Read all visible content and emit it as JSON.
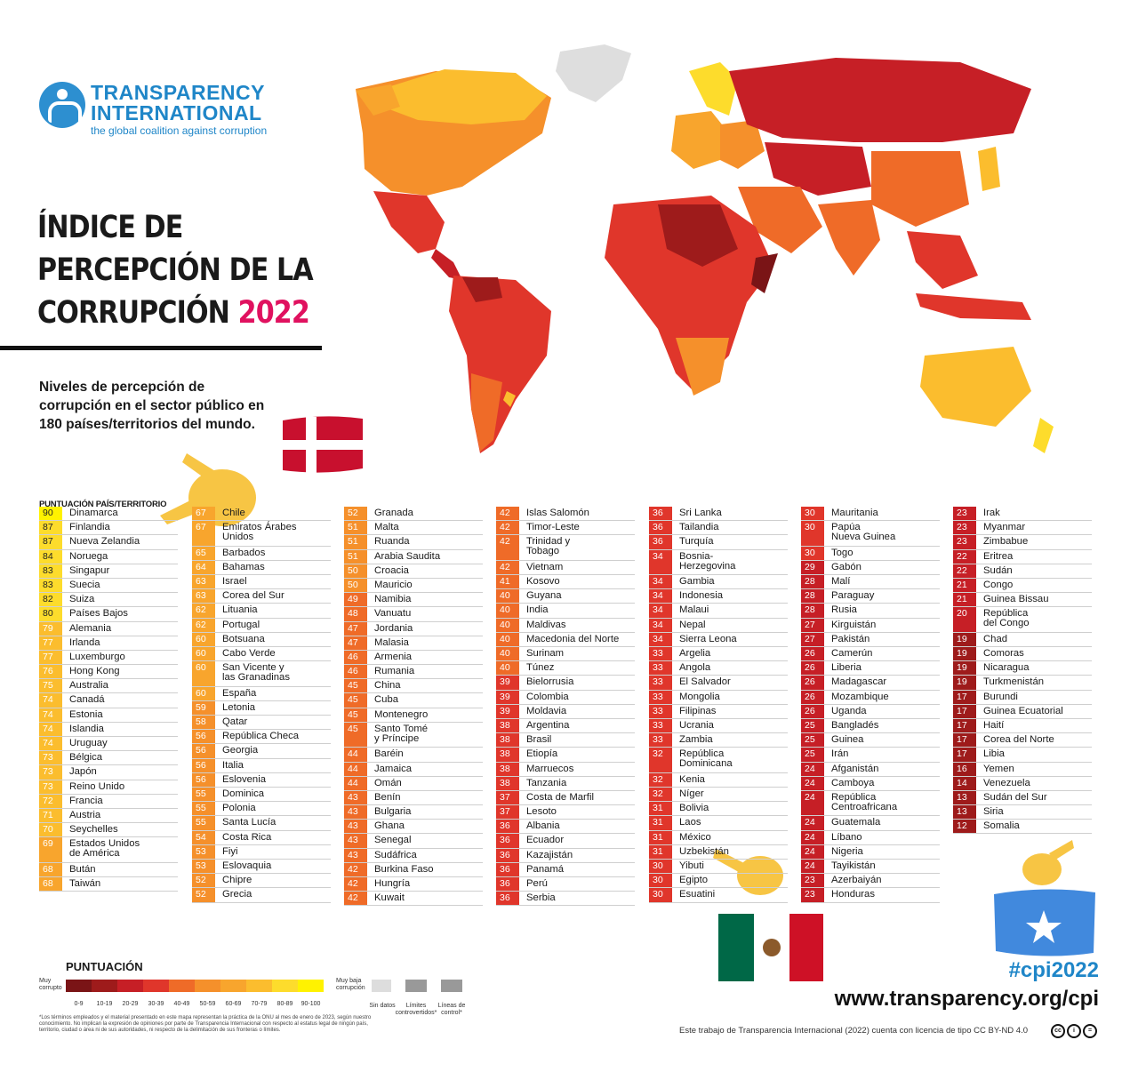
{
  "brand": {
    "line1": "TRANSPARENCY",
    "line2": "INTERNATIONAL",
    "tagline": "the global coalition against corruption"
  },
  "title": {
    "line1": "ÍNDICE DE",
    "line2": "PERCEPCIÓN DE LA",
    "line3": "CORRUPCIÓN",
    "year": "2022"
  },
  "subtitle": "Niveles de percepción de corrupción en el sector público en 180 países/territorios del mundo.",
  "table_header": "PUNTUACIÓN  PAÍS/TERRITORIO",
  "colors": {
    "s0": "#7a1416",
    "s10": "#9e1b1b",
    "s20": "#c61f26",
    "s30": "#e0362b",
    "s40": "#ef6b28",
    "s50": "#f5902b",
    "s60": "#f8a52d",
    "s70": "#fbbd2e",
    "s80": "#fddc2c",
    "s90": "#fff200",
    "accent": "#e0115f",
    "blue": "#1f86c8"
  },
  "columns": [
    [
      {
        "s": 90,
        "n": "Dinamarca"
      },
      {
        "s": 87,
        "n": "Finlandia"
      },
      {
        "s": 87,
        "n": "Nueva Zelandia"
      },
      {
        "s": 84,
        "n": "Noruega"
      },
      {
        "s": 83,
        "n": "Singapur"
      },
      {
        "s": 83,
        "n": "Suecia"
      },
      {
        "s": 82,
        "n": "Suiza"
      },
      {
        "s": 80,
        "n": "Países Bajos"
      },
      {
        "s": 79,
        "n": "Alemania"
      },
      {
        "s": 77,
        "n": "Irlanda"
      },
      {
        "s": 77,
        "n": "Luxemburgo"
      },
      {
        "s": 76,
        "n": "Hong Kong"
      },
      {
        "s": 75,
        "n": "Australia"
      },
      {
        "s": 74,
        "n": "Canadá"
      },
      {
        "s": 74,
        "n": "Estonia"
      },
      {
        "s": 74,
        "n": "Islandia"
      },
      {
        "s": 74,
        "n": "Uruguay"
      },
      {
        "s": 73,
        "n": "Bélgica"
      },
      {
        "s": 73,
        "n": "Japón"
      },
      {
        "s": 73,
        "n": "Reino Unido"
      },
      {
        "s": 72,
        "n": "Francia"
      },
      {
        "s": 71,
        "n": "Austria"
      },
      {
        "s": 70,
        "n": "Seychelles"
      },
      {
        "s": 69,
        "n": "Estados Unidos\nde América"
      },
      {
        "s": 68,
        "n": "Bután"
      },
      {
        "s": 68,
        "n": "Taiwán"
      }
    ],
    [
      {
        "s": 67,
        "n": "Chile"
      },
      {
        "s": 67,
        "n": "Emiratos Árabes\nUnidos"
      },
      {
        "s": 65,
        "n": "Barbados"
      },
      {
        "s": 64,
        "n": "Bahamas"
      },
      {
        "s": 63,
        "n": "Israel"
      },
      {
        "s": 63,
        "n": "Corea del Sur"
      },
      {
        "s": 62,
        "n": "Lituania"
      },
      {
        "s": 62,
        "n": "Portugal"
      },
      {
        "s": 60,
        "n": "Botsuana"
      },
      {
        "s": 60,
        "n": "Cabo Verde"
      },
      {
        "s": 60,
        "n": "San Vicente y\nlas Granadinas"
      },
      {
        "s": 60,
        "n": "España"
      },
      {
        "s": 59,
        "n": "Letonia"
      },
      {
        "s": 58,
        "n": "Qatar"
      },
      {
        "s": 56,
        "n": "República Checa"
      },
      {
        "s": 56,
        "n": "Georgia"
      },
      {
        "s": 56,
        "n": "Italia"
      },
      {
        "s": 56,
        "n": "Eslovenia"
      },
      {
        "s": 55,
        "n": "Dominica"
      },
      {
        "s": 55,
        "n": "Polonia"
      },
      {
        "s": 55,
        "n": "Santa Lucía"
      },
      {
        "s": 54,
        "n": "Costa Rica"
      },
      {
        "s": 53,
        "n": "Fiyi"
      },
      {
        "s": 53,
        "n": "Eslovaquia"
      },
      {
        "s": 52,
        "n": "Chipre"
      },
      {
        "s": 52,
        "n": "Grecia"
      }
    ],
    [
      {
        "s": 52,
        "n": "Granada"
      },
      {
        "s": 51,
        "n": "Malta"
      },
      {
        "s": 51,
        "n": "Ruanda"
      },
      {
        "s": 51,
        "n": "Arabia Saudita"
      },
      {
        "s": 50,
        "n": "Croacia"
      },
      {
        "s": 50,
        "n": "Mauricio"
      },
      {
        "s": 49,
        "n": "Namibia"
      },
      {
        "s": 48,
        "n": "Vanuatu"
      },
      {
        "s": 47,
        "n": "Jordania"
      },
      {
        "s": 47,
        "n": "Malasia"
      },
      {
        "s": 46,
        "n": "Armenia"
      },
      {
        "s": 46,
        "n": "Rumania"
      },
      {
        "s": 45,
        "n": "China"
      },
      {
        "s": 45,
        "n": "Cuba"
      },
      {
        "s": 45,
        "n": "Montenegro"
      },
      {
        "s": 45,
        "n": "Santo Tomé\ny Príncipe"
      },
      {
        "s": 44,
        "n": "Baréin"
      },
      {
        "s": 44,
        "n": "Jamaica"
      },
      {
        "s": 44,
        "n": "Omán"
      },
      {
        "s": 43,
        "n": "Benín"
      },
      {
        "s": 43,
        "n": "Bulgaria"
      },
      {
        "s": 43,
        "n": "Ghana"
      },
      {
        "s": 43,
        "n": "Senegal"
      },
      {
        "s": 43,
        "n": "Sudáfrica"
      },
      {
        "s": 42,
        "n": "Burkina Faso"
      },
      {
        "s": 42,
        "n": "Hungría"
      },
      {
        "s": 42,
        "n": "Kuwait"
      }
    ],
    [
      {
        "s": 42,
        "n": "Islas Salomón"
      },
      {
        "s": 42,
        "n": "Timor-Leste"
      },
      {
        "s": 42,
        "n": "Trinidad y\nTobago"
      },
      {
        "s": 42,
        "n": "Vietnam"
      },
      {
        "s": 41,
        "n": "Kosovo"
      },
      {
        "s": 40,
        "n": "Guyana"
      },
      {
        "s": 40,
        "n": "India"
      },
      {
        "s": 40,
        "n": "Maldivas"
      },
      {
        "s": 40,
        "n": "Macedonia del Norte"
      },
      {
        "s": 40,
        "n": "Surinam"
      },
      {
        "s": 40,
        "n": "Túnez"
      },
      {
        "s": 39,
        "n": "Bielorrusia"
      },
      {
        "s": 39,
        "n": "Colombia"
      },
      {
        "s": 39,
        "n": "Moldavia"
      },
      {
        "s": 38,
        "n": "Argentina"
      },
      {
        "s": 38,
        "n": "Brasil"
      },
      {
        "s": 38,
        "n": "Etiopía"
      },
      {
        "s": 38,
        "n": "Marruecos"
      },
      {
        "s": 38,
        "n": "Tanzania"
      },
      {
        "s": 37,
        "n": "Costa de Marfil"
      },
      {
        "s": 37,
        "n": "Lesoto"
      },
      {
        "s": 36,
        "n": "Albania"
      },
      {
        "s": 36,
        "n": "Ecuador"
      },
      {
        "s": 36,
        "n": "Kazajistán"
      },
      {
        "s": 36,
        "n": "Panamá"
      },
      {
        "s": 36,
        "n": "Perú"
      },
      {
        "s": 36,
        "n": "Serbia"
      }
    ],
    [
      {
        "s": 36,
        "n": "Sri Lanka"
      },
      {
        "s": 36,
        "n": "Tailandia"
      },
      {
        "s": 36,
        "n": "Turquía"
      },
      {
        "s": 34,
        "n": "Bosnia-\nHerzegovina"
      },
      {
        "s": 34,
        "n": "Gambia"
      },
      {
        "s": 34,
        "n": "Indonesia"
      },
      {
        "s": 34,
        "n": "Malaui"
      },
      {
        "s": 34,
        "n": "Nepal"
      },
      {
        "s": 34,
        "n": "Sierra Leona"
      },
      {
        "s": 33,
        "n": "Argelia"
      },
      {
        "s": 33,
        "n": "Angola"
      },
      {
        "s": 33,
        "n": "El Salvador"
      },
      {
        "s": 33,
        "n": "Mongolia"
      },
      {
        "s": 33,
        "n": "Filipinas"
      },
      {
        "s": 33,
        "n": "Ucrania"
      },
      {
        "s": 33,
        "n": "Zambia"
      },
      {
        "s": 32,
        "n": "República\nDominicana"
      },
      {
        "s": 32,
        "n": "Kenia"
      },
      {
        "s": 32,
        "n": "Níger"
      },
      {
        "s": 31,
        "n": "Bolivia"
      },
      {
        "s": 31,
        "n": "Laos"
      },
      {
        "s": 31,
        "n": "México"
      },
      {
        "s": 31,
        "n": "Uzbekistán"
      },
      {
        "s": 30,
        "n": "Yibuti"
      },
      {
        "s": 30,
        "n": "Egipto"
      },
      {
        "s": 30,
        "n": "Esuatini"
      }
    ],
    [
      {
        "s": 30,
        "n": "Mauritania"
      },
      {
        "s": 30,
        "n": "Papúa\nNueva Guinea"
      },
      {
        "s": 30,
        "n": "Togo"
      },
      {
        "s": 29,
        "n": "Gabón"
      },
      {
        "s": 28,
        "n": "Malí"
      },
      {
        "s": 28,
        "n": "Paraguay"
      },
      {
        "s": 28,
        "n": "Rusia"
      },
      {
        "s": 27,
        "n": "Kirguistán"
      },
      {
        "s": 27,
        "n": "Pakistán"
      },
      {
        "s": 26,
        "n": "Camerún"
      },
      {
        "s": 26,
        "n": "Liberia"
      },
      {
        "s": 26,
        "n": "Madagascar"
      },
      {
        "s": 26,
        "n": "Mozambique"
      },
      {
        "s": 26,
        "n": "Uganda"
      },
      {
        "s": 25,
        "n": "Bangladés"
      },
      {
        "s": 25,
        "n": "Guinea"
      },
      {
        "s": 25,
        "n": "Irán"
      },
      {
        "s": 24,
        "n": "Afganistán"
      },
      {
        "s": 24,
        "n": "Camboya"
      },
      {
        "s": 24,
        "n": "República\nCentroafricana"
      },
      {
        "s": 24,
        "n": "Guatemala"
      },
      {
        "s": 24,
        "n": "Líbano"
      },
      {
        "s": 24,
        "n": "Nigeria"
      },
      {
        "s": 24,
        "n": "Tayikistán"
      },
      {
        "s": 23,
        "n": "Azerbaiyán"
      },
      {
        "s": 23,
        "n": "Honduras"
      }
    ],
    [
      {
        "s": 23,
        "n": "Irak"
      },
      {
        "s": 23,
        "n": "Myanmar"
      },
      {
        "s": 23,
        "n": "Zimbabue"
      },
      {
        "s": 22,
        "n": "Eritrea"
      },
      {
        "s": 22,
        "n": "Sudán"
      },
      {
        "s": 21,
        "n": "Congo"
      },
      {
        "s": 21,
        "n": "Guinea Bissau"
      },
      {
        "s": 20,
        "n": "República\ndel Congo"
      },
      {
        "s": 19,
        "n": "Chad"
      },
      {
        "s": 19,
        "n": "Comoras"
      },
      {
        "s": 19,
        "n": "Nicaragua"
      },
      {
        "s": 19,
        "n": "Turkmenistán"
      },
      {
        "s": 17,
        "n": "Burundi"
      },
      {
        "s": 17,
        "n": "Guinea Ecuatorial"
      },
      {
        "s": 17,
        "n": "Haití"
      },
      {
        "s": 17,
        "n": "Corea del Norte"
      },
      {
        "s": 17,
        "n": "Libia"
      },
      {
        "s": 16,
        "n": "Yemen"
      },
      {
        "s": 14,
        "n": "Venezuela"
      },
      {
        "s": 13,
        "n": "Sudán del Sur"
      },
      {
        "s": 13,
        "n": "Siria"
      },
      {
        "s": 12,
        "n": "Somalia"
      }
    ]
  ],
  "legend": {
    "title": "PUNTUACIÓN",
    "low": "Muy\ncorrupto",
    "high": "Muy baja\ncorrupción",
    "ranges": [
      "0-9",
      "10-19",
      "20-29",
      "30-39",
      "40-49",
      "50-59",
      "60-69",
      "70-79",
      "80-89",
      "90-100"
    ],
    "no_data": "Sin datos",
    "disputed": "Límites\ncontrovertidos*",
    "control": "Líneas de\ncontrol*"
  },
  "footnote": "*Los términos empleados y el material presentado en este mapa representan la práctica de la ONU al mes de enero de 2023, según nuestro conocimiento. No implican la expresión de opiniones por parte de Transparencia Internacional con respecto al estatus legal de ningún país, territorio, ciudad o área ni de sus autoridades, ni respecto de la delimitación de sus fronteras o límites.",
  "hashtag": "#cpi2022",
  "url": "www.transparency.org/cpi",
  "license": "Este trabajo de Transparencia Internacional (2022) cuenta con licencia de tipo CC BY-ND 4.0",
  "cc_icons": [
    "cc",
    "by",
    "nd"
  ],
  "stickers": [
    "denmark-flag",
    "mexico-flag",
    "somalia-flag",
    "pointing-hand-emoji"
  ]
}
